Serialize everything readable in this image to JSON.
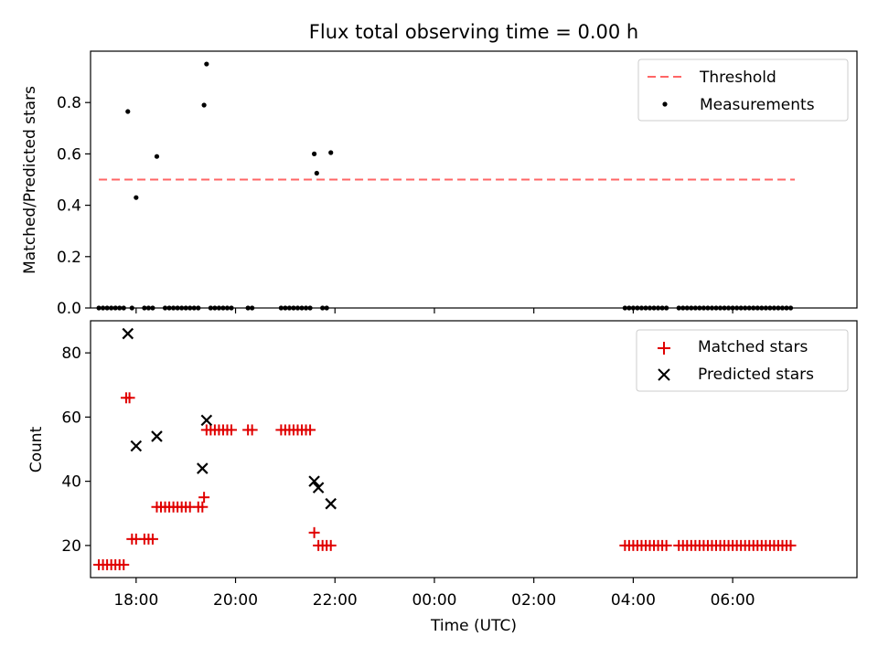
{
  "chart_data": [
    {
      "type": "scatter",
      "title": "Flux total observing time = 0.00 h",
      "xlabel": "",
      "ylabel": "Matched/Predicted stars",
      "xlim": [
        "17:05",
        "08:30"
      ],
      "ylim": [
        0,
        1.0
      ],
      "yticks": [
        0.0,
        0.2,
        0.4,
        0.6,
        0.8
      ],
      "ytick_labels": [
        "0.0",
        "0.2",
        "0.4",
        "0.6",
        "0.8"
      ],
      "legend_position": "upper-right",
      "threshold": {
        "name": "Threshold",
        "value": 0.5,
        "x_range": [
          "17:15",
          "07:15"
        ],
        "color": "#ff6666",
        "style": "dashed"
      },
      "series": [
        {
          "name": "Measurements",
          "color": "#000000",
          "marker": "dot",
          "points": [
            [
              "17:50",
              0.765
            ],
            [
              "18:00",
              0.43
            ],
            [
              "18:25",
              0.59
            ],
            [
              "19:22",
              0.79
            ],
            [
              "19:25",
              0.95
            ],
            [
              "21:35",
              0.6
            ],
            [
              "21:38",
              0.525
            ],
            [
              "21:55",
              0.605
            ],
            [
              "17:15",
              0
            ],
            [
              "17:20",
              0
            ],
            [
              "17:25",
              0
            ],
            [
              "17:30",
              0
            ],
            [
              "17:35",
              0
            ],
            [
              "17:40",
              0
            ],
            [
              "17:45",
              0
            ],
            [
              "17:55",
              0
            ],
            [
              "18:10",
              0
            ],
            [
              "18:15",
              0
            ],
            [
              "18:20",
              0
            ],
            [
              "18:35",
              0
            ],
            [
              "18:40",
              0
            ],
            [
              "18:45",
              0
            ],
            [
              "18:50",
              0
            ],
            [
              "18:55",
              0
            ],
            [
              "19:00",
              0
            ],
            [
              "19:05",
              0
            ],
            [
              "19:10",
              0
            ],
            [
              "19:15",
              0
            ],
            [
              "19:30",
              0
            ],
            [
              "19:35",
              0
            ],
            [
              "19:40",
              0
            ],
            [
              "19:45",
              0
            ],
            [
              "19:50",
              0
            ],
            [
              "19:55",
              0
            ],
            [
              "20:15",
              0
            ],
            [
              "20:20",
              0
            ],
            [
              "20:55",
              0
            ],
            [
              "21:00",
              0
            ],
            [
              "21:05",
              0
            ],
            [
              "21:10",
              0
            ],
            [
              "21:15",
              0
            ],
            [
              "21:20",
              0
            ],
            [
              "21:25",
              0
            ],
            [
              "21:30",
              0
            ],
            [
              "21:45",
              0
            ],
            [
              "21:50",
              0
            ],
            [
              "03:50",
              0
            ],
            [
              "03:55",
              0
            ],
            [
              "04:00",
              0
            ],
            [
              "04:05",
              0
            ],
            [
              "04:10",
              0
            ],
            [
              "04:15",
              0
            ],
            [
              "04:20",
              0
            ],
            [
              "04:25",
              0
            ],
            [
              "04:30",
              0
            ],
            [
              "04:35",
              0
            ],
            [
              "04:40",
              0
            ],
            [
              "04:55",
              0
            ],
            [
              "05:00",
              0
            ],
            [
              "05:05",
              0
            ],
            [
              "05:10",
              0
            ],
            [
              "05:15",
              0
            ],
            [
              "05:20",
              0
            ],
            [
              "05:25",
              0
            ],
            [
              "05:30",
              0
            ],
            [
              "05:35",
              0
            ],
            [
              "05:40",
              0
            ],
            [
              "05:45",
              0
            ],
            [
              "05:50",
              0
            ],
            [
              "05:55",
              0
            ],
            [
              "06:00",
              0
            ],
            [
              "06:05",
              0
            ],
            [
              "06:10",
              0
            ],
            [
              "06:15",
              0
            ],
            [
              "06:20",
              0
            ],
            [
              "06:25",
              0
            ],
            [
              "06:30",
              0
            ],
            [
              "06:35",
              0
            ],
            [
              "06:40",
              0
            ],
            [
              "06:45",
              0
            ],
            [
              "06:50",
              0
            ],
            [
              "06:55",
              0
            ],
            [
              "07:00",
              0
            ],
            [
              "07:05",
              0
            ],
            [
              "07:10",
              0
            ]
          ]
        }
      ]
    },
    {
      "type": "scatter",
      "title": "",
      "xlabel": "Time (UTC)",
      "ylabel": "Count",
      "xlim": [
        "17:05",
        "08:30"
      ],
      "ylim": [
        10,
        90
      ],
      "yticks": [
        20,
        40,
        60,
        80
      ],
      "ytick_labels": [
        "20",
        "40",
        "60",
        "80"
      ],
      "xticks": [
        "18:00",
        "20:00",
        "22:00",
        "00:00",
        "02:00",
        "04:00",
        "06:00"
      ],
      "legend_position": "upper-right",
      "series": [
        {
          "name": "Matched stars",
          "color": "#e00000",
          "marker": "plus",
          "points": [
            [
              "17:15",
              14
            ],
            [
              "17:20",
              14
            ],
            [
              "17:25",
              14
            ],
            [
              "17:30",
              14
            ],
            [
              "17:35",
              14
            ],
            [
              "17:40",
              14
            ],
            [
              "17:45",
              14
            ],
            [
              "17:48",
              66
            ],
            [
              "17:52",
              66
            ],
            [
              "17:55",
              22
            ],
            [
              "18:00",
              22
            ],
            [
              "18:10",
              22
            ],
            [
              "18:15",
              22
            ],
            [
              "18:20",
              22
            ],
            [
              "18:25",
              32
            ],
            [
              "18:30",
              32
            ],
            [
              "18:35",
              32
            ],
            [
              "18:40",
              32
            ],
            [
              "18:45",
              32
            ],
            [
              "18:50",
              32
            ],
            [
              "18:55",
              32
            ],
            [
              "19:00",
              32
            ],
            [
              "19:05",
              32
            ],
            [
              "19:15",
              32
            ],
            [
              "19:20",
              32
            ],
            [
              "19:22",
              35
            ],
            [
              "19:25",
              56
            ],
            [
              "19:30",
              56
            ],
            [
              "19:35",
              56
            ],
            [
              "19:40",
              56
            ],
            [
              "19:45",
              56
            ],
            [
              "19:50",
              56
            ],
            [
              "19:55",
              56
            ],
            [
              "20:15",
              56
            ],
            [
              "20:20",
              56
            ],
            [
              "20:55",
              56
            ],
            [
              "21:00",
              56
            ],
            [
              "21:05",
              56
            ],
            [
              "21:10",
              56
            ],
            [
              "21:15",
              56
            ],
            [
              "21:20",
              56
            ],
            [
              "21:25",
              56
            ],
            [
              "21:30",
              56
            ],
            [
              "21:35",
              24
            ],
            [
              "21:40",
              20
            ],
            [
              "21:45",
              20
            ],
            [
              "21:50",
              20
            ],
            [
              "21:55",
              20
            ],
            [
              "03:50",
              20
            ],
            [
              "03:55",
              20
            ],
            [
              "04:00",
              20
            ],
            [
              "04:05",
              20
            ],
            [
              "04:10",
              20
            ],
            [
              "04:15",
              20
            ],
            [
              "04:20",
              20
            ],
            [
              "04:25",
              20
            ],
            [
              "04:30",
              20
            ],
            [
              "04:35",
              20
            ],
            [
              "04:40",
              20
            ],
            [
              "04:55",
              20
            ],
            [
              "05:00",
              20
            ],
            [
              "05:05",
              20
            ],
            [
              "05:10",
              20
            ],
            [
              "05:15",
              20
            ],
            [
              "05:20",
              20
            ],
            [
              "05:25",
              20
            ],
            [
              "05:30",
              20
            ],
            [
              "05:35",
              20
            ],
            [
              "05:40",
              20
            ],
            [
              "05:45",
              20
            ],
            [
              "05:50",
              20
            ],
            [
              "05:55",
              20
            ],
            [
              "06:00",
              20
            ],
            [
              "06:05",
              20
            ],
            [
              "06:10",
              20
            ],
            [
              "06:15",
              20
            ],
            [
              "06:20",
              20
            ],
            [
              "06:25",
              20
            ],
            [
              "06:30",
              20
            ],
            [
              "06:35",
              20
            ],
            [
              "06:40",
              20
            ],
            [
              "06:45",
              20
            ],
            [
              "06:50",
              20
            ],
            [
              "06:55",
              20
            ],
            [
              "07:00",
              20
            ],
            [
              "07:05",
              20
            ],
            [
              "07:10",
              20
            ]
          ]
        },
        {
          "name": "Predicted stars",
          "color": "#000000",
          "marker": "x",
          "points": [
            [
              "17:50",
              86
            ],
            [
              "18:00",
              51
            ],
            [
              "18:25",
              54
            ],
            [
              "19:20",
              44
            ],
            [
              "19:25",
              59
            ],
            [
              "21:35",
              40
            ],
            [
              "21:40",
              38
            ],
            [
              "21:55",
              33
            ]
          ]
        }
      ]
    }
  ]
}
